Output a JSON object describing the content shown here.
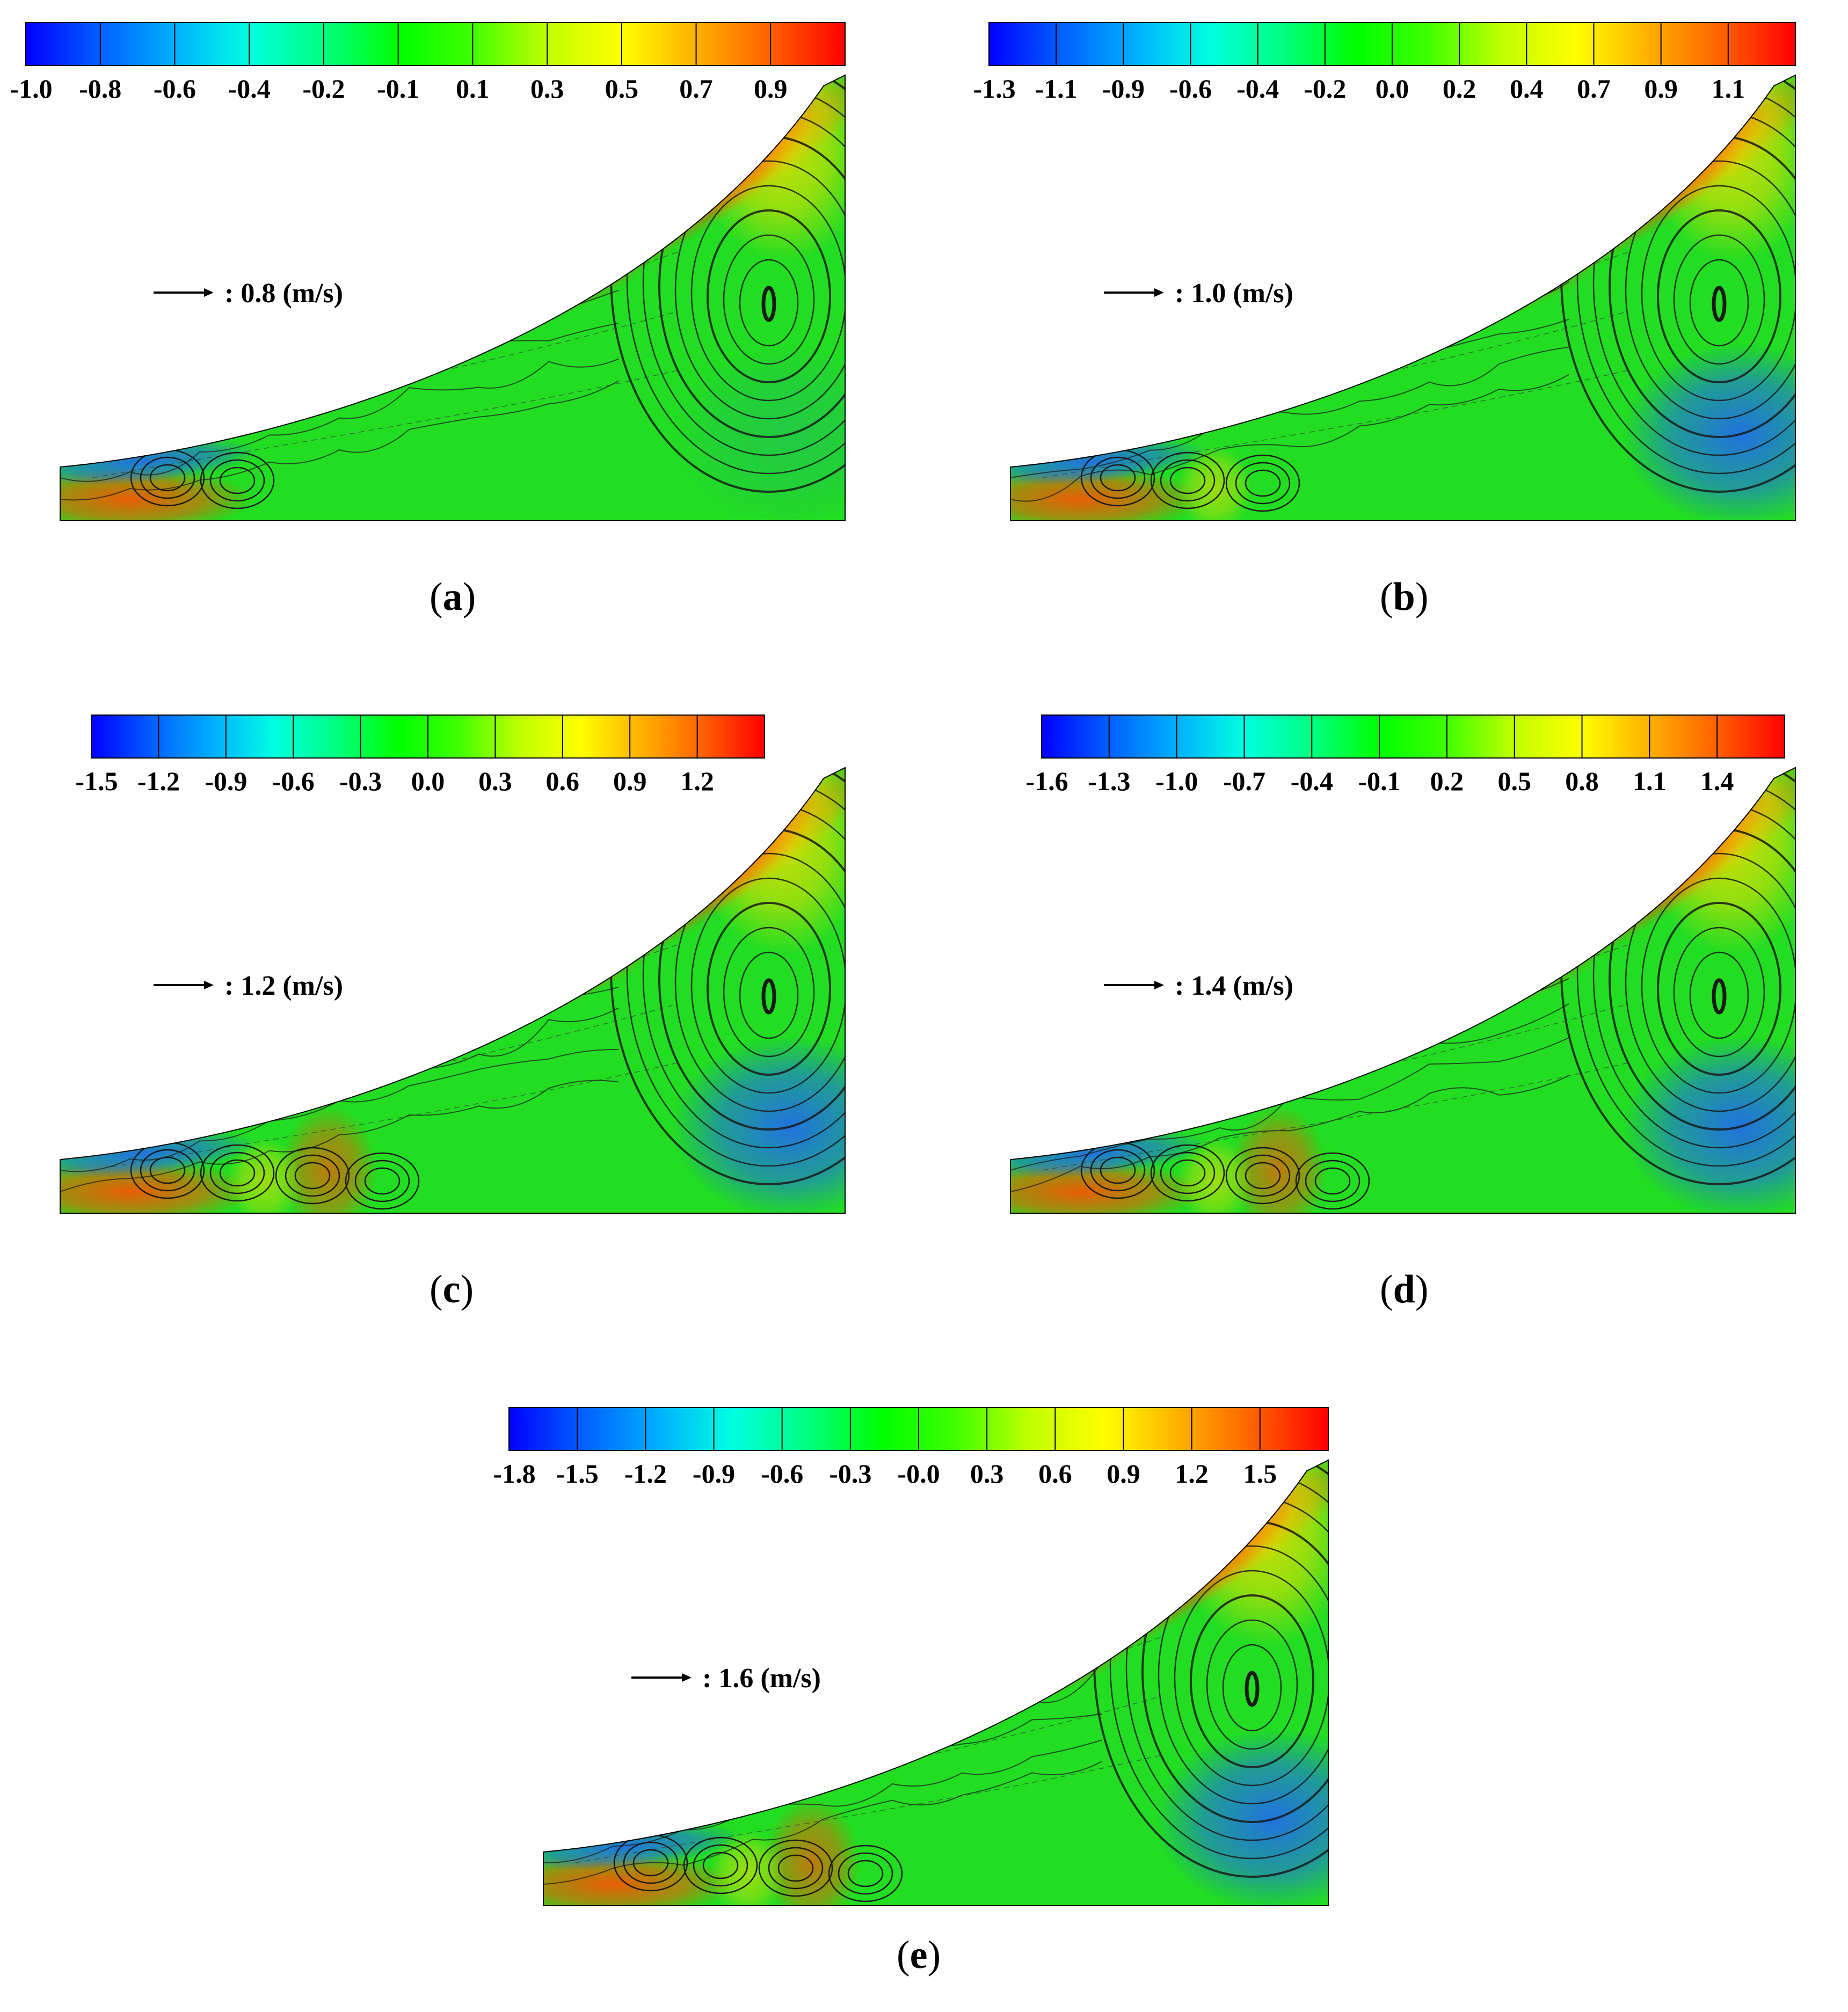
{
  "chart_data": [
    {
      "type": "heatmap",
      "panel": "a",
      "caption_letter": "a",
      "colorbar_ticks": [
        "-1.0",
        "-0.8",
        "-0.6",
        "-0.4",
        "-0.2",
        "-0.1",
        "0.1",
        "0.3",
        "0.5",
        "0.7",
        "0.9"
      ],
      "colorbar_range": [
        -1.0,
        0.9
      ],
      "reference_vector": {
        "value": 0.8,
        "label": ":  0.8 (m/s)"
      }
    },
    {
      "type": "heatmap",
      "panel": "b",
      "caption_letter": "b",
      "colorbar_ticks": [
        "-1.3",
        "-1.1",
        "-0.9",
        "-0.6",
        "-0.4",
        "-0.2",
        "0.0",
        "0.2",
        "0.4",
        "0.7",
        "0.9",
        "1.1"
      ],
      "colorbar_range": [
        -1.3,
        1.1
      ],
      "reference_vector": {
        "value": 1.0,
        "label": ":  1.0 (m/s)"
      }
    },
    {
      "type": "heatmap",
      "panel": "c",
      "caption_letter": "c",
      "colorbar_ticks": [
        "-1.5",
        "-1.2",
        "-0.9",
        "-0.6",
        "-0.3",
        "0.0",
        "0.3",
        "0.6",
        "0.9",
        "1.2"
      ],
      "colorbar_range": [
        -1.5,
        1.2
      ],
      "reference_vector": {
        "value": 1.2,
        "label": ":  1.2 (m/s)"
      }
    },
    {
      "type": "heatmap",
      "panel": "d",
      "caption_letter": "d",
      "colorbar_ticks": [
        "-1.6",
        "-1.3",
        "-1.0",
        "-0.7",
        "-0.4",
        "-0.1",
        "0.2",
        "0.5",
        "0.8",
        "1.1",
        "1.4"
      ],
      "colorbar_range": [
        -1.6,
        1.4
      ],
      "reference_vector": {
        "value": 1.4,
        "label": ":  1.4 (m/s)"
      }
    },
    {
      "type": "heatmap",
      "panel": "e",
      "caption_letter": "e",
      "colorbar_ticks": [
        "-1.8",
        "-1.5",
        "-1.2",
        "-0.9",
        "-0.6",
        "-0.3",
        "-0.0",
        "0.3",
        "0.6",
        "0.9",
        "1.2",
        "1.5"
      ],
      "colorbar_range": [
        -1.8,
        1.5
      ],
      "reference_vector": {
        "value": 1.6,
        "label": ":  1.6 (m/s)"
      }
    }
  ],
  "colorbar_colors": [
    "#0000ff",
    "#0060ff",
    "#00b0ff",
    "#00ffe0",
    "#00ff80",
    "#00ff00",
    "#40ff00",
    "#c0ff00",
    "#ffff00",
    "#ffb000",
    "#ff6000",
    "#ff0000"
  ],
  "field_colors": {
    "background": "#22dd22",
    "low": "#2060ff",
    "high": "#ff5000",
    "yellow": "#f0e000",
    "streamline": "#1a1a1a"
  }
}
